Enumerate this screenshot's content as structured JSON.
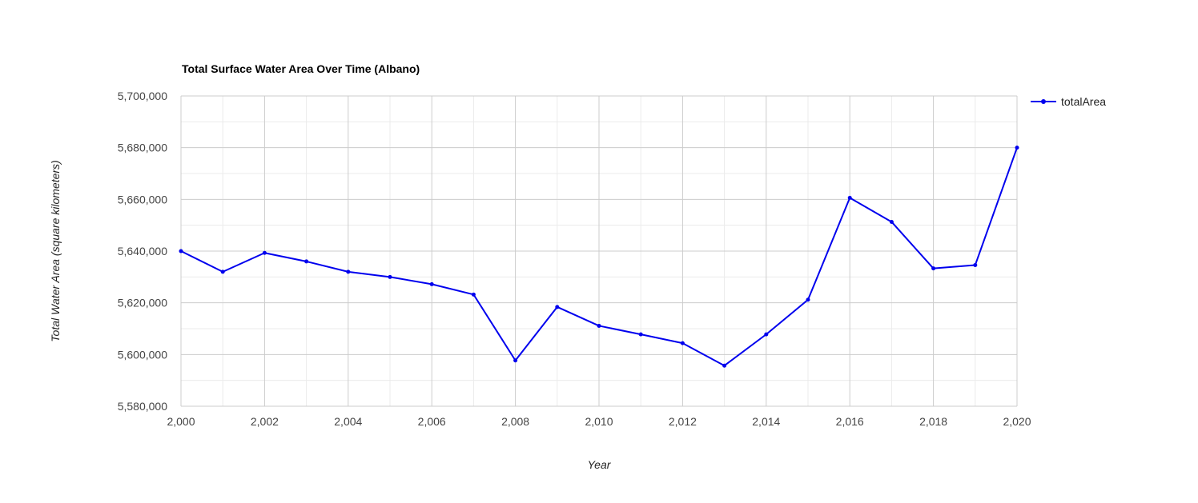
{
  "chart_data": {
    "type": "line",
    "title": "Total Surface Water Area Over Time (Albano)",
    "xlabel": "Year",
    "ylabel": "Total Water Area (square kilometers)",
    "xlim": [
      2000,
      2020
    ],
    "ylim": [
      5580000,
      5700000
    ],
    "x_ticks": [
      2000,
      2002,
      2004,
      2006,
      2008,
      2010,
      2012,
      2014,
      2016,
      2018,
      2020
    ],
    "x_tick_labels": [
      "2,000",
      "2,002",
      "2,004",
      "2,006",
      "2,008",
      "2,010",
      "2,012",
      "2,014",
      "2,016",
      "2,018",
      "2,020"
    ],
    "y_ticks": [
      5580000,
      5600000,
      5620000,
      5640000,
      5660000,
      5680000,
      5700000
    ],
    "y_tick_labels": [
      "5,580,000",
      "5,600,000",
      "5,620,000",
      "5,640,000",
      "5,660,000",
      "5,680,000",
      "5,700,000"
    ],
    "grid": true,
    "legend_position": "right",
    "series": [
      {
        "name": "totalArea",
        "color": "#0000ee",
        "x": [
          2000,
          2001,
          2002,
          2003,
          2004,
          2005,
          2006,
          2007,
          2008,
          2009,
          2010,
          2011,
          2012,
          2013,
          2014,
          2015,
          2016,
          2017,
          2018,
          2019,
          2020
        ],
        "values": [
          5640000,
          5632000,
          5639300,
          5636000,
          5632000,
          5630000,
          5627200,
          5623200,
          5597700,
          5618400,
          5611100,
          5607800,
          5604400,
          5595700,
          5607800,
          5621200,
          5660600,
          5651300,
          5633300,
          5634600,
          5680000
        ]
      }
    ]
  }
}
